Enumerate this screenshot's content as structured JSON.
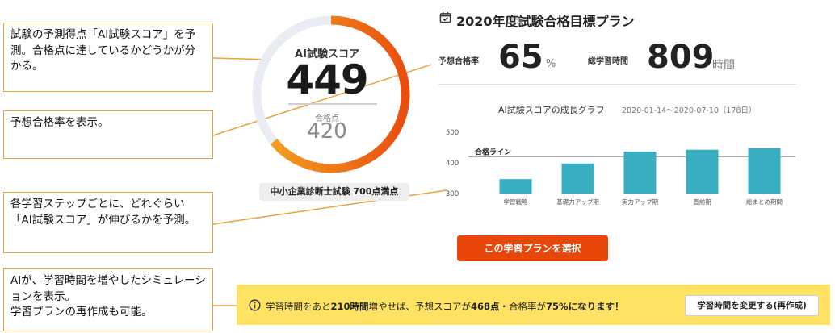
{
  "callouts": {
    "score": "試験の予測得点「AI試験スコア」を予測。合格点に達しているかどうかが分かる。",
    "pass_rate": "予想合格率を表示。",
    "steps": "各学習ステップごとに、どれぐらい「AI試験スコア」が伸びるかを予測。",
    "simulation_line1": "AIが、学習時間を増やしたシミュレーションを表示。",
    "simulation_line2": "学習プランの再作成も可能。"
  },
  "gauge": {
    "score_label": "AI試験スコア",
    "score_value": "449",
    "pass_label": "合格点",
    "pass_value": "420",
    "exam_badge": "中小企業診断士試験 700点満点",
    "max_points": 700,
    "score_fraction": 0.64,
    "track_color": "#e9edf3",
    "fill_start_color": "#f5a623",
    "fill_end_color": "#e94e0f"
  },
  "plan": {
    "title": "2020年度試験合格目標プラン",
    "icon": "calendar-check-icon",
    "pass_rate_label": "予想合格率",
    "pass_rate_value": "65",
    "pass_rate_unit": "%",
    "study_hours_label": "総学習時間",
    "study_hours_value": "809",
    "study_hours_unit": "時間"
  },
  "chart_data": {
    "type": "bar",
    "title": "AI試験スコアの成長グラフ",
    "subtitle": "2020-01-14〜2020-07-10（178日）",
    "categories": [
      "学習戦略",
      "基礎力アップ期",
      "実力アップ期",
      "直前期",
      "総まとめ期間"
    ],
    "values": [
      347,
      398,
      437,
      443,
      448
    ],
    "ylim": [
      300,
      500
    ],
    "yticks": [
      "300",
      "400",
      "500"
    ],
    "reference_line": {
      "label": "合格ライン",
      "value": 420
    },
    "bar_color": "#3aaec1",
    "grid": false
  },
  "select_button_label": "この学習プランを選択",
  "banner": {
    "icon": "info-icon",
    "text_prefix": "学習時間をあと",
    "text_hours": "210時間",
    "text_mid": "増やせば、予想スコアが",
    "text_score": "468点",
    "text_sep": "・合格率が",
    "text_rate": "75%",
    "text_suffix": "になります！",
    "button_label": "学習時間を変更する(再作成)",
    "background": "#fde264"
  }
}
